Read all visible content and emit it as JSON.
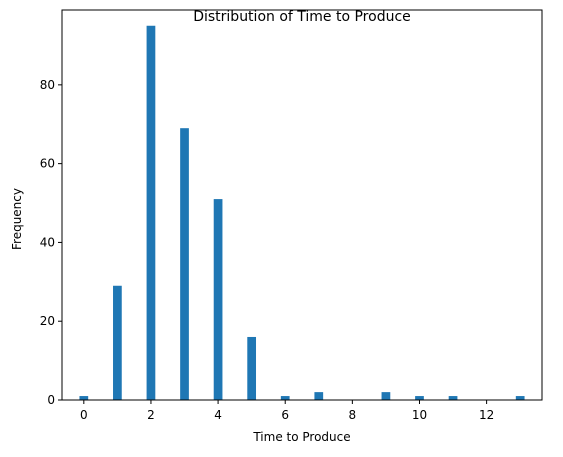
{
  "chart_data": {
    "type": "bar",
    "title": "Distribution of Time to Produce",
    "xlabel": "Time to Produce",
    "ylabel": "Frequency",
    "x": [
      0,
      1,
      2,
      3,
      4,
      5,
      6,
      7,
      9,
      10,
      11,
      13
    ],
    "values": [
      1,
      29,
      95,
      69,
      51,
      16,
      1,
      2,
      2,
      1,
      1,
      1
    ],
    "xlim": [
      -0.65,
      13.65
    ],
    "ylim": [
      0,
      99
    ],
    "xticks": [
      0,
      2,
      4,
      6,
      8,
      10,
      12
    ],
    "yticks": [
      0,
      20,
      40,
      60,
      80
    ],
    "bar_color": "#1f77b4",
    "grid": false,
    "legend": "none"
  }
}
